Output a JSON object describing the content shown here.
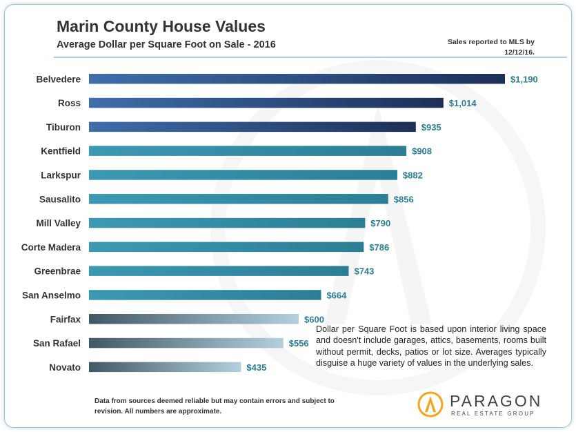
{
  "header": {
    "title": "Marin County House Values",
    "subtitle": "Average Dollar per Square Foot on Sale - 2016",
    "note": "Sales reported to MLS by 12/12/16."
  },
  "chart_data": {
    "type": "bar",
    "orientation": "horizontal",
    "title": "Marin County House Values",
    "subtitle": "Average Dollar per Square Foot on Sale - 2016",
    "categories": [
      "Belvedere",
      "Ross",
      "Tiburon",
      "Kentfield",
      "Larkspur",
      "Sausalito",
      "Mill Valley",
      "Corte Madera",
      "Greenbrae",
      "San Anselmo",
      "Fairfax",
      "San Rafael",
      "Novato"
    ],
    "values": [
      1190,
      1014,
      935,
      908,
      882,
      856,
      790,
      786,
      743,
      664,
      600,
      556,
      435
    ],
    "value_labels": [
      "$1,190",
      "$1,014",
      "$935",
      "$908",
      "$882",
      "$856",
      "$790",
      "$786",
      "$743",
      "$664",
      "$600",
      "$556",
      "$435"
    ],
    "xlim": [
      0,
      1190
    ],
    "xlabel": "",
    "ylabel": "",
    "grid": false,
    "legend": "none",
    "bar_color_groups": [
      "navy",
      "navy",
      "navy",
      "teal",
      "teal",
      "teal",
      "teal",
      "teal",
      "teal",
      "teal",
      "gray",
      "gray",
      "gray"
    ],
    "colors": {
      "navy": [
        "#3f6eab",
        "#1d3058"
      ],
      "teal": [
        "#3c99b3",
        "#2b7e95"
      ],
      "gray": [
        "#3f5a64",
        "#b4d0dd"
      ],
      "value_label": "#2b7e95",
      "category_label": "#333333"
    }
  },
  "description": "Dollar per Square Foot is based upon interior living space and doesn't include garages, attics, basements, rooms built without permit, decks, patios or lot size. Averages typically disguise a huge variety of values in the underlying sales.",
  "footer": "Data from sources deemed reliable but may contain errors and subject to revision. All numbers are approximate.",
  "logo": {
    "name": "PARAGON",
    "tagline": "REAL ESTATE GROUP",
    "icon": "paragon-logo-icon",
    "colors": {
      "circle": "#f2a51c",
      "text": "#444444"
    }
  }
}
